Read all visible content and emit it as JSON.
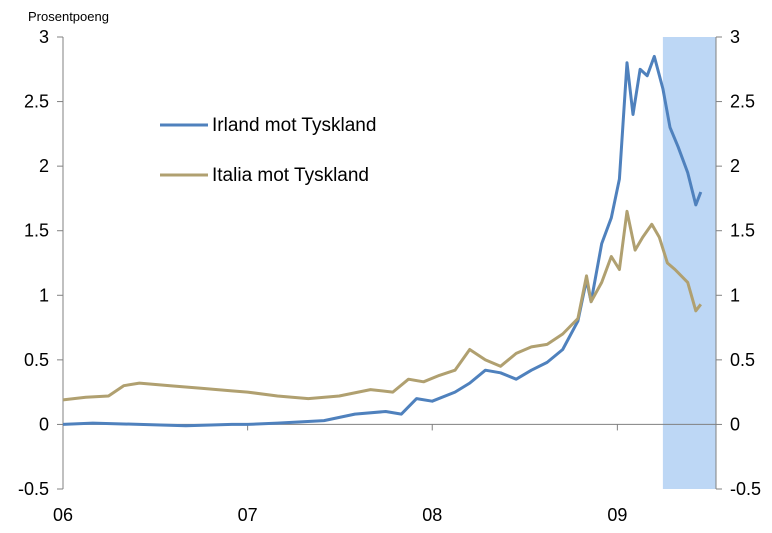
{
  "chart_data": {
    "type": "line",
    "unit_label": "Prosentpoeng",
    "x_ticks": [
      "06",
      "07",
      "08",
      "09"
    ],
    "xlim": [
      "2006-01-01",
      "2009-07-15"
    ],
    "ylim": [
      -0.5,
      3
    ],
    "y_ticks": [
      "-0.5",
      "0",
      "0.5",
      "1",
      "1.5",
      "2",
      "2.5",
      "3"
    ],
    "shaded_region": {
      "from": "2009-04-01",
      "to": "2009-07-15",
      "color": "#bdd7f5"
    },
    "legend": {
      "position": "top-left"
    },
    "series": [
      {
        "name": "Irland mot Tyskland",
        "color": "#4f81bd",
        "points": [
          [
            "2006-01-01",
            0.0
          ],
          [
            "2006-03-01",
            0.01
          ],
          [
            "2006-06-01",
            0.0
          ],
          [
            "2006-09-01",
            -0.01
          ],
          [
            "2006-12-01",
            0.0
          ],
          [
            "2007-01-01",
            0.0
          ],
          [
            "2007-03-01",
            0.01
          ],
          [
            "2007-06-01",
            0.03
          ],
          [
            "2007-08-01",
            0.08
          ],
          [
            "2007-10-01",
            0.1
          ],
          [
            "2007-11-01",
            0.08
          ],
          [
            "2007-12-01",
            0.2
          ],
          [
            "2008-01-01",
            0.18
          ],
          [
            "2008-02-15",
            0.25
          ],
          [
            "2008-03-15",
            0.32
          ],
          [
            "2008-04-15",
            0.42
          ],
          [
            "2008-05-15",
            0.4
          ],
          [
            "2008-06-15",
            0.35
          ],
          [
            "2008-07-15",
            0.42
          ],
          [
            "2008-08-15",
            0.48
          ],
          [
            "2008-09-15",
            0.58
          ],
          [
            "2008-10-15",
            0.8
          ],
          [
            "2008-11-01",
            1.12
          ],
          [
            "2008-11-10",
            0.95
          ],
          [
            "2008-12-01",
            1.4
          ],
          [
            "2008-12-20",
            1.6
          ],
          [
            "2009-01-05",
            1.9
          ],
          [
            "2009-01-20",
            2.8
          ],
          [
            "2009-02-01",
            2.4
          ],
          [
            "2009-02-15",
            2.75
          ],
          [
            "2009-03-01",
            2.7
          ],
          [
            "2009-03-15",
            2.85
          ],
          [
            "2009-04-01",
            2.6
          ],
          [
            "2009-04-15",
            2.3
          ],
          [
            "2009-05-01",
            2.15
          ],
          [
            "2009-05-20",
            1.95
          ],
          [
            "2009-06-05",
            1.7
          ],
          [
            "2009-06-15",
            1.8
          ]
        ]
      },
      {
        "name": "Italia mot Tyskland",
        "color": "#b0a070",
        "points": [
          [
            "2006-01-01",
            0.19
          ],
          [
            "2006-02-15",
            0.21
          ],
          [
            "2006-04-01",
            0.22
          ],
          [
            "2006-05-01",
            0.3
          ],
          [
            "2006-06-01",
            0.32
          ],
          [
            "2006-08-01",
            0.3
          ],
          [
            "2006-10-01",
            0.28
          ],
          [
            "2006-12-01",
            0.26
          ],
          [
            "2007-01-01",
            0.25
          ],
          [
            "2007-03-01",
            0.22
          ],
          [
            "2007-05-01",
            0.2
          ],
          [
            "2007-07-01",
            0.22
          ],
          [
            "2007-09-01",
            0.27
          ],
          [
            "2007-10-15",
            0.25
          ],
          [
            "2007-11-15",
            0.35
          ],
          [
            "2007-12-15",
            0.33
          ],
          [
            "2008-01-15",
            0.38
          ],
          [
            "2008-02-15",
            0.42
          ],
          [
            "2008-03-15",
            0.58
          ],
          [
            "2008-04-15",
            0.5
          ],
          [
            "2008-05-15",
            0.45
          ],
          [
            "2008-06-15",
            0.55
          ],
          [
            "2008-07-15",
            0.6
          ],
          [
            "2008-08-15",
            0.62
          ],
          [
            "2008-09-15",
            0.7
          ],
          [
            "2008-10-15",
            0.82
          ],
          [
            "2008-11-01",
            1.15
          ],
          [
            "2008-11-10",
            0.95
          ],
          [
            "2008-12-01",
            1.1
          ],
          [
            "2008-12-20",
            1.3
          ],
          [
            "2009-01-05",
            1.2
          ],
          [
            "2009-01-20",
            1.65
          ],
          [
            "2009-02-05",
            1.35
          ],
          [
            "2009-02-20",
            1.45
          ],
          [
            "2009-03-10",
            1.55
          ],
          [
            "2009-03-25",
            1.45
          ],
          [
            "2009-04-10",
            1.25
          ],
          [
            "2009-04-25",
            1.2
          ],
          [
            "2009-05-20",
            1.1
          ],
          [
            "2009-06-05",
            0.88
          ],
          [
            "2009-06-15",
            0.93
          ]
        ]
      }
    ]
  }
}
